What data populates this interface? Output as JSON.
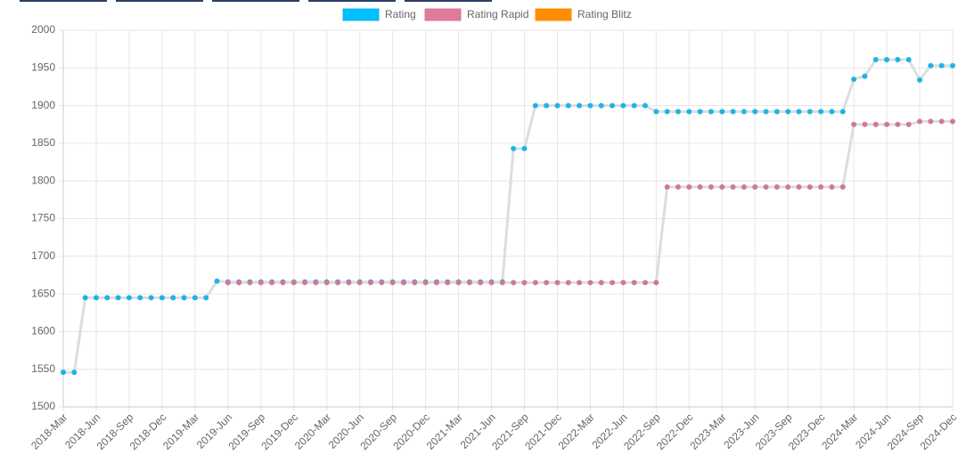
{
  "chart_data": {
    "type": "line",
    "categories": [
      "2018-Mar",
      null,
      null,
      "2018-Jun",
      null,
      null,
      "2018-Sep",
      null,
      null,
      "2018-Dec",
      null,
      null,
      "2019-Mar",
      null,
      null,
      "2019-Jun",
      null,
      null,
      "2019-Sep",
      null,
      null,
      "2019-Dec",
      null,
      null,
      "2020-Mar",
      null,
      null,
      "2020-Jun",
      null,
      null,
      "2020-Sep",
      null,
      null,
      "2020-Dec",
      null,
      null,
      "2021-Mar",
      null,
      null,
      "2021-Jun",
      null,
      null,
      "2021-Sep",
      null,
      null,
      "2021-Dec",
      null,
      null,
      "2022-Mar",
      null,
      null,
      "2022-Jun",
      null,
      null,
      "2022-Sep",
      null,
      null,
      "2022-Dec",
      null,
      null,
      "2023-Mar",
      null,
      null,
      "2023-Jun",
      null,
      null,
      "2023-Sep",
      null,
      null,
      "2023-Dec",
      null,
      null,
      "2024-Mar",
      null,
      null,
      "2024-Jun",
      null,
      null,
      "2024-Sep",
      null,
      null,
      "2024-Dec"
    ],
    "series": [
      {
        "name": "Rating",
        "color": "#1eb4e6",
        "values": [
          1546,
          1546,
          1645,
          1645,
          1645,
          1645,
          1645,
          1645,
          1645,
          1645,
          1645,
          1645,
          1645,
          1645,
          1667,
          1666,
          1666,
          1666,
          1666,
          1666,
          1666,
          1666,
          1666,
          1666,
          1666,
          1666,
          1666,
          1666,
          1666,
          1666,
          1666,
          1666,
          1666,
          1666,
          1666,
          1666,
          1666,
          1666,
          1666,
          1666,
          1666,
          1843,
          1843,
          1900,
          1900,
          1900,
          1900,
          1900,
          1900,
          1900,
          1900,
          1900,
          1900,
          1900,
          1892,
          1892,
          1892,
          1892,
          1892,
          1892,
          1892,
          1892,
          1892,
          1892,
          1892,
          1892,
          1892,
          1892,
          1892,
          1892,
          1892,
          1892,
          1935,
          1939,
          1961,
          1961,
          1961,
          1961,
          1934,
          1953,
          1953,
          1953
        ]
      },
      {
        "name": "Rating Rapid",
        "color": "#d07898",
        "values": [
          null,
          null,
          null,
          null,
          null,
          null,
          null,
          null,
          null,
          null,
          null,
          null,
          null,
          null,
          null,
          1665,
          1665,
          1665,
          1665,
          1665,
          1665,
          1665,
          1665,
          1665,
          1665,
          1665,
          1665,
          1665,
          1665,
          1665,
          1665,
          1665,
          1665,
          1665,
          1665,
          1665,
          1665,
          1665,
          1665,
          1665,
          1665,
          1665,
          1665,
          1665,
          1665,
          1665,
          1665,
          1665,
          1665,
          1665,
          1665,
          1665,
          1665,
          1665,
          1665,
          1792,
          1792,
          1792,
          1792,
          1792,
          1792,
          1792,
          1792,
          1792,
          1792,
          1792,
          1792,
          1792,
          1792,
          1792,
          1792,
          1792,
          1875,
          1875,
          1875,
          1875,
          1875,
          1875,
          1879,
          1879,
          1879,
          1879
        ]
      },
      {
        "name": "Rating Blitz",
        "color": "#ff8c00",
        "values": [
          null,
          null,
          null,
          null,
          null,
          null,
          null,
          null,
          null,
          null,
          null,
          null,
          null,
          null,
          null,
          null,
          null,
          null,
          null,
          null,
          null,
          null,
          null,
          null,
          null,
          null,
          null,
          null,
          null,
          null,
          null,
          null,
          null,
          null,
          null,
          null,
          null,
          null,
          null,
          null,
          null,
          null,
          null,
          null,
          null,
          null,
          null,
          null,
          null,
          null,
          null,
          null,
          null,
          null,
          null,
          null,
          null,
          null,
          null,
          null,
          null,
          null,
          null,
          null,
          null,
          null,
          null,
          null,
          null,
          null,
          null,
          null,
          null,
          null,
          null,
          null,
          null,
          null,
          null,
          null,
          null,
          null
        ]
      }
    ],
    "legend_colors": [
      "#00bfff",
      "#e07a9a",
      "#ff8c00"
    ],
    "line_color": "#dddddd",
    "ylim": [
      1500,
      2000
    ],
    "yticks": [
      1500,
      1550,
      1600,
      1650,
      1700,
      1750,
      1800,
      1850,
      1900,
      1950,
      2000
    ],
    "grid": true
  }
}
